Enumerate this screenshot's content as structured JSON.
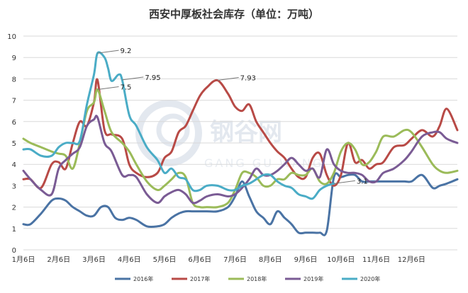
{
  "chart_data": {
    "type": "line",
    "title": "西安中厚板社会库存（单位：万吨）",
    "ylim": [
      0,
      10
    ],
    "yticks": [
      "0",
      "1",
      "2",
      "3",
      "4",
      "5",
      "6",
      "7",
      "8",
      "9",
      "10"
    ],
    "xticks": [
      "1月6日",
      "2月6日",
      "3月6日",
      "4月6日",
      "5月6日",
      "6月6日",
      "7月6日",
      "8月6日",
      "9月6日",
      "10月6日",
      "11月6日",
      "12月6日"
    ],
    "grid": true,
    "legend_position": "bottom",
    "watermark": {
      "brand": "钢谷网",
      "sub": "GANG GU WANG"
    },
    "series": [
      {
        "name": "2016年",
        "color": "#4a73a4",
        "x": [
          1,
          1.2,
          1.5,
          1.8,
          2,
          2.2,
          2.4,
          2.6,
          2.8,
          3,
          3.2,
          3.4,
          3.6,
          3.8,
          4,
          4.2,
          4.5,
          4.8,
          5,
          5.2,
          5.4,
          5.6,
          5.8,
          6,
          6.2,
          6.5,
          6.8,
          7,
          7.2,
          7.4,
          7.6,
          7.8,
          8,
          8.2,
          8.4,
          8.6,
          8.8,
          9,
          9.2,
          9.4,
          9.6,
          9.8,
          10,
          10.2,
          10.4,
          10.6,
          10.8,
          11,
          11.2,
          11.5,
          11.8,
          12,
          12.3,
          12.6,
          12.8,
          13,
          13.3
        ],
        "values": [
          1.2,
          1.2,
          1.7,
          2.3,
          2.4,
          2.3,
          2,
          1.8,
          1.6,
          1.6,
          2,
          2,
          1.5,
          1.4,
          1.5,
          1.4,
          1.1,
          1.1,
          1.2,
          1.5,
          1.7,
          1.8,
          1.8,
          1.8,
          1.8,
          1.8,
          2,
          2.5,
          3.2,
          2.5,
          1.8,
          1.5,
          1.2,
          1.8,
          1.5,
          1.2,
          0.8,
          0.8,
          0.8,
          0.8,
          0.9,
          3.4,
          3.4,
          3.5,
          3.5,
          3.2,
          3.2,
          3.2,
          3.2,
          3.2,
          3.2,
          3.2,
          3.5,
          2.9,
          3,
          3.1,
          3.3
        ]
      },
      {
        "name": "2017年",
        "color": "#b84a46",
        "x": [
          1,
          1.2,
          1.5,
          1.8,
          2,
          2.2,
          2.4,
          2.6,
          2.8,
          3,
          3.1,
          3.3,
          3.5,
          3.8,
          4,
          4.2,
          4.5,
          4.8,
          5,
          5.2,
          5.4,
          5.6,
          5.8,
          6,
          6.2,
          6.5,
          6.8,
          7,
          7.2,
          7.4,
          7.6,
          7.8,
          8,
          8.2,
          8.4,
          8.6,
          8.8,
          9,
          9.2,
          9.4,
          9.6,
          9.8,
          10,
          10.2,
          10.4,
          10.6,
          10.8,
          11,
          11.2,
          11.5,
          11.8,
          12,
          12.3,
          12.6,
          12.8,
          13,
          13.3
        ],
        "values": [
          3.3,
          3.3,
          2.9,
          4,
          4.1,
          3.8,
          5,
          6,
          5.8,
          6.9,
          7.95,
          5.6,
          5.4,
          5.2,
          4,
          3.6,
          3.4,
          3.6,
          4.3,
          4.6,
          5.5,
          5.8,
          6.5,
          7.2,
          7.6,
          7.93,
          7.3,
          6.7,
          6.5,
          6.8,
          6,
          5.5,
          5,
          4.6,
          4.3,
          3.8,
          3.4,
          3.4,
          4.3,
          4.5,
          3.5,
          3,
          3.5,
          5,
          4.1,
          4.2,
          3.8,
          4,
          4.1,
          4.8,
          4.9,
          5.2,
          5.6,
          5.3,
          5.8,
          6.6,
          5.6
        ]
      },
      {
        "name": "2018年",
        "color": "#9bbb59",
        "x": [
          1,
          1.2,
          1.5,
          1.8,
          2,
          2.2,
          2.4,
          2.6,
          2.8,
          3,
          3.1,
          3.3,
          3.5,
          3.8,
          4,
          4.2,
          4.5,
          4.8,
          5,
          5.2,
          5.4,
          5.6,
          5.8,
          6,
          6.2,
          6.5,
          6.8,
          7,
          7.2,
          7.4,
          7.6,
          7.8,
          8,
          8.2,
          8.4,
          8.6,
          8.8,
          9,
          9.2,
          9.4,
          9.6,
          9.8,
          10,
          10.2,
          10.4,
          10.6,
          10.8,
          11,
          11.2,
          11.5,
          11.8,
          12,
          12.3,
          12.6,
          12.8,
          13,
          13.3
        ],
        "values": [
          5.2,
          5,
          4.8,
          4.6,
          4.5,
          4.4,
          3.8,
          5,
          6.5,
          6.9,
          7.5,
          6.5,
          5.5,
          5,
          4.6,
          4,
          3.2,
          2.8,
          3,
          3.3,
          3.6,
          3.4,
          2.2,
          2,
          2,
          2,
          2.2,
          2.8,
          3.6,
          3.6,
          3.4,
          3,
          3,
          3.3,
          3.3,
          3.6,
          3.5,
          3.5,
          3.8,
          3.2,
          3.1,
          3.6,
          4.6,
          5,
          4.7,
          4,
          4.1,
          4.6,
          5.3,
          5.3,
          5.6,
          5.5,
          4.8,
          4,
          3.7,
          3.6,
          3.7
        ]
      },
      {
        "name": "2019年",
        "color": "#7a5b94",
        "x": [
          1,
          1.2,
          1.5,
          1.8,
          2,
          2.2,
          2.4,
          2.6,
          2.8,
          3,
          3.1,
          3.3,
          3.5,
          3.8,
          4,
          4.2,
          4.5,
          4.8,
          5,
          5.2,
          5.4,
          5.6,
          5.8,
          6,
          6.2,
          6.5,
          6.8,
          7,
          7.2,
          7.4,
          7.6,
          7.8,
          8,
          8.2,
          8.4,
          8.6,
          8.8,
          9,
          9.2,
          9.4,
          9.6,
          9.8,
          10,
          10.2,
          10.4,
          10.6,
          10.8,
          11,
          11.2,
          11.5,
          11.8,
          12,
          12.3,
          12.6,
          12.8,
          13,
          13.3
        ],
        "values": [
          3.7,
          3.3,
          2.8,
          2.6,
          3.8,
          4.2,
          4.5,
          4.8,
          5.8,
          6.1,
          6.2,
          5,
          4.6,
          3.5,
          3.5,
          3.4,
          2.6,
          2.2,
          2.5,
          2.7,
          2.8,
          2.6,
          2.2,
          2.3,
          2.5,
          2.6,
          2.5,
          2.6,
          2.9,
          3.3,
          3.8,
          3.5,
          3.5,
          3.7,
          4,
          4.3,
          4,
          3.7,
          3.8,
          3.4,
          4.7,
          4,
          3.7,
          3.6,
          3.6,
          3.5,
          3.2,
          3.2,
          3.6,
          3.8,
          4.2,
          4.6,
          5.3,
          5.5,
          5.5,
          5.2,
          5
        ]
      },
      {
        "name": "2020年",
        "color": "#4aacc6",
        "x": [
          1,
          1.2,
          1.5,
          1.8,
          2,
          2.2,
          2.4,
          2.6,
          2.8,
          3,
          3.1,
          3.3,
          3.4,
          3.5,
          3.7,
          3.8,
          4,
          4.2,
          4.5,
          4.8,
          5,
          5.2,
          5.4,
          5.6,
          5.8,
          6,
          6.2,
          6.5,
          6.8,
          7,
          7.2,
          7.4,
          7.6,
          7.8,
          8,
          8.2,
          8.4,
          8.6,
          8.8,
          9,
          9.2,
          9.4,
          9.6,
          9.8
        ],
        "values": [
          4.7,
          4.7,
          4.4,
          4.4,
          4.8,
          5,
          5,
          5.1,
          6.8,
          8.2,
          9.2,
          9,
          8.5,
          7.9,
          8.2,
          7.95,
          6.3,
          5.8,
          4.8,
          4.2,
          3.6,
          3.8,
          3.4,
          3.3,
          2.8,
          2.8,
          3,
          3,
          2.8,
          2.8,
          3,
          3.1,
          3.3,
          3.5,
          3.5,
          3.2,
          3,
          2.9,
          2.6,
          2.5,
          2.4,
          2.8,
          3,
          3.1
        ]
      }
    ],
    "annotations": [
      {
        "text": "9.2",
        "x": 3.1,
        "y": 9.2
      },
      {
        "text": "7.95",
        "x": 3.8,
        "y": 7.95
      },
      {
        "text": "7.5",
        "x": 3.1,
        "y": 7.5
      },
      {
        "text": "7.93",
        "x": 6.5,
        "y": 7.93
      },
      {
        "text": "3.1",
        "x": 9.8,
        "y": 3.1
      }
    ]
  }
}
